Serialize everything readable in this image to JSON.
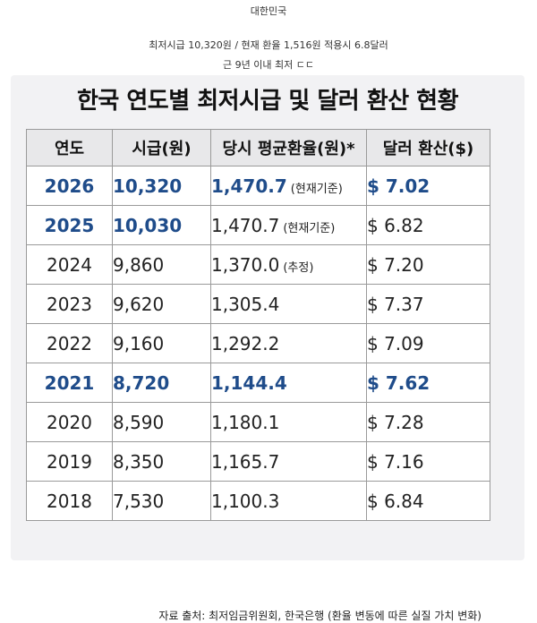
{
  "post": {
    "country": "대한민국",
    "line1": "최저시급 10,320원 / 현재 환율 1,516원 적용시 6.8달러",
    "line2": "근 9년 이내 최저 ㄷㄷ"
  },
  "infographic": {
    "title": "한국 연도별 최저시급 및 달러 환산 현황",
    "headers": [
      "연도",
      "시급(원)",
      "당시 평균환율(원)*",
      "달러 환산($)"
    ],
    "rows": [
      {
        "year": "2026",
        "wage": "10,320",
        "rate": "1,470.7",
        "note": "(현재기준)",
        "usd": "$ 7.02"
      },
      {
        "year": "2025",
        "wage": "10,030",
        "rate": "1,470.7",
        "note": "(현재기준)",
        "usd": "$ 6.82"
      },
      {
        "year": "2024",
        "wage": "9,860",
        "rate": "1,370.0",
        "note": "(추정)",
        "usd": "$ 7.20"
      },
      {
        "year": "2023",
        "wage": "9,620",
        "rate": "1,305.4",
        "note": "",
        "usd": "$ 7.37"
      },
      {
        "year": "2022",
        "wage": "9,160",
        "rate": "1,292.2",
        "note": "",
        "usd": "$ 7.09"
      },
      {
        "year": "2021",
        "wage": "8,720",
        "rate": "1,144.4",
        "note": "",
        "usd": "$ 7.62"
      },
      {
        "year": "2020",
        "wage": "8,590",
        "rate": "1,180.1",
        "note": "",
        "usd": "$ 7.28"
      },
      {
        "year": "2019",
        "wage": "8,350",
        "rate": "1,165.7",
        "note": "",
        "usd": "$ 7.16"
      },
      {
        "year": "2018",
        "wage": "7,530",
        "rate": "1,100.3",
        "note": "",
        "usd": "$ 6.84"
      }
    ],
    "source": "자료 출처: 최저임금위원회, 한국은행 (환율 변동에 따른 실질 가치 변화)"
  },
  "colors": {
    "highlight": "#1f4c8a",
    "card_bg": "#f2f2f4",
    "header_bg": "#e8e8ea"
  }
}
